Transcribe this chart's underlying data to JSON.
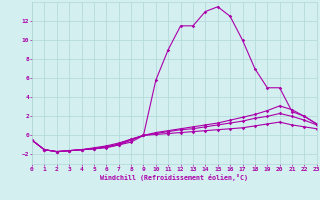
{
  "title": "",
  "xlabel": "Windchill (Refroidissement éolien,°C)",
  "ylabel": "",
  "background_color": "#d4efef",
  "grid_color": "#b0d8d8",
  "line_color": "#aa00aa",
  "xlim": [
    0,
    23
  ],
  "ylim": [
    -3,
    14
  ],
  "xticks": [
    0,
    1,
    2,
    3,
    4,
    5,
    6,
    7,
    8,
    9,
    10,
    11,
    12,
    13,
    14,
    15,
    16,
    17,
    18,
    19,
    20,
    21,
    22,
    23
  ],
  "yticks": [
    -2,
    0,
    2,
    4,
    6,
    8,
    10,
    12
  ],
  "series": [
    {
      "x": [
        0,
        1,
        2,
        3,
        4,
        5,
        6,
        7,
        8,
        9,
        10,
        11,
        12,
        13,
        14,
        15,
        16,
        17,
        18,
        19,
        20,
        21,
        22,
        23
      ],
      "y": [
        -0.5,
        -1.5,
        -1.7,
        -1.6,
        -1.5,
        -1.4,
        -1.3,
        -1.0,
        -0.7,
        0.0,
        5.8,
        9.0,
        11.5,
        11.5,
        13.0,
        13.5,
        12.5,
        10.0,
        7.0,
        5.0,
        5.0,
        2.5,
        2.0,
        1.2
      ]
    },
    {
      "x": [
        0,
        1,
        2,
        3,
        4,
        5,
        6,
        7,
        8,
        9,
        10,
        11,
        12,
        13,
        14,
        15,
        16,
        17,
        18,
        19,
        20,
        21,
        22,
        23
      ],
      "y": [
        -0.5,
        -1.5,
        -1.7,
        -1.6,
        -1.5,
        -1.4,
        -1.2,
        -1.0,
        -0.5,
        0.0,
        0.3,
        0.5,
        0.7,
        0.9,
        1.1,
        1.3,
        1.6,
        1.9,
        2.2,
        2.6,
        3.1,
        2.7,
        2.0,
        1.2
      ]
    },
    {
      "x": [
        0,
        1,
        2,
        3,
        4,
        5,
        6,
        7,
        8,
        9,
        10,
        11,
        12,
        13,
        14,
        15,
        16,
        17,
        18,
        19,
        20,
        21,
        22,
        23
      ],
      "y": [
        -0.5,
        -1.5,
        -1.7,
        -1.6,
        -1.5,
        -1.4,
        -1.2,
        -0.9,
        -0.4,
        0.0,
        0.2,
        0.4,
        0.6,
        0.7,
        0.9,
        1.1,
        1.3,
        1.5,
        1.8,
        2.0,
        2.3,
        2.0,
        1.6,
        1.1
      ]
    },
    {
      "x": [
        0,
        1,
        2,
        3,
        4,
        5,
        6,
        7,
        8,
        9,
        10,
        11,
        12,
        13,
        14,
        15,
        16,
        17,
        18,
        19,
        20,
        21,
        22,
        23
      ],
      "y": [
        -0.5,
        -1.5,
        -1.7,
        -1.6,
        -1.5,
        -1.3,
        -1.1,
        -0.8,
        -0.4,
        0.0,
        0.1,
        0.2,
        0.3,
        0.4,
        0.5,
        0.6,
        0.7,
        0.8,
        1.0,
        1.2,
        1.4,
        1.1,
        0.9,
        0.7
      ]
    }
  ]
}
